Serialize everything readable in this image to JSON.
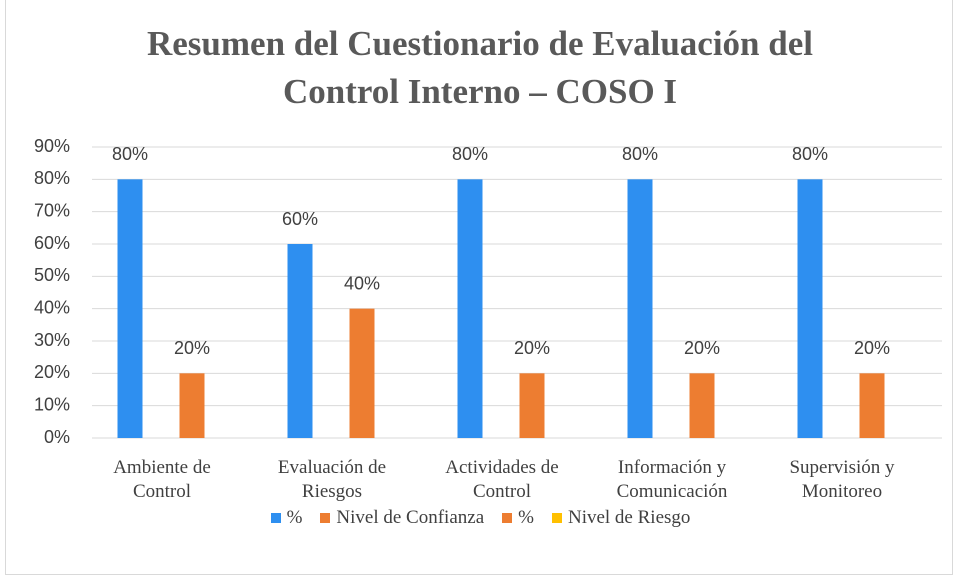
{
  "chart_data": {
    "type": "bar",
    "title": "Resumen del Cuestionario de Evaluación del Control Interno – COSO I",
    "categories": [
      "Ambiente de Control",
      "Evaluación de Riesgos",
      "Actividades de Control",
      "Información y Comunicación",
      "Supervisión y Monitoreo"
    ],
    "series": [
      {
        "name": "%",
        "color": "#2e8ff0",
        "values": [
          80,
          60,
          80,
          80,
          80
        ],
        "value_labels": [
          "80%",
          "60%",
          "80%",
          "80%",
          "80%"
        ]
      },
      {
        "name": "Nivel de Confianza",
        "color": "#ed7d31",
        "values": [
          20,
          40,
          20,
          20,
          20
        ],
        "value_labels": [
          "20%",
          "40%",
          "20%",
          "20%",
          "20%"
        ]
      },
      {
        "name": "%",
        "color": "#ed7d31",
        "values": [
          null,
          null,
          null,
          null,
          null
        ]
      },
      {
        "name": "Nivel de Riesgo",
        "color": "#ffc000",
        "values": [
          null,
          null,
          null,
          null,
          null
        ]
      }
    ],
    "ylim": [
      0,
      90
    ],
    "yticks": [
      {
        "value": 0,
        "label": "0%"
      },
      {
        "value": 10,
        "label": "10%"
      },
      {
        "value": 20,
        "label": "20%"
      },
      {
        "value": 30,
        "label": "30%"
      },
      {
        "value": 40,
        "label": "40%"
      },
      {
        "value": 50,
        "label": "50%"
      },
      {
        "value": 60,
        "label": "60%"
      },
      {
        "value": 70,
        "label": "70%"
      },
      {
        "value": 80,
        "label": "80%"
      },
      {
        "value": 90,
        "label": "90%"
      }
    ],
    "grid": true
  }
}
